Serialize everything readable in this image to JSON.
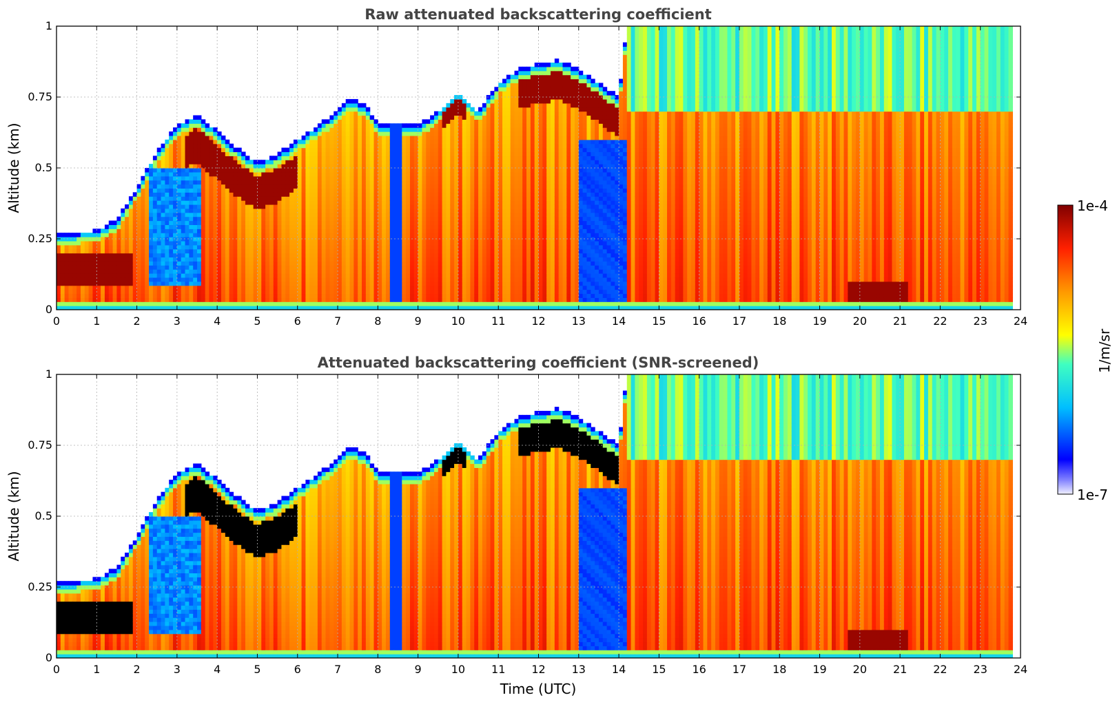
{
  "chart_data": [
    {
      "type": "heatmap",
      "title": "Raw attenuated backscattering coefficient",
      "xlabel": "",
      "ylabel": "Altitude (km)",
      "xlim": [
        0,
        24
      ],
      "ylim": [
        0,
        1
      ],
      "xticks": [
        "0",
        "1",
        "2",
        "3",
        "4",
        "5",
        "6",
        "7",
        "8",
        "9",
        "10",
        "11",
        "12",
        "13",
        "14",
        "15",
        "16",
        "17",
        "18",
        "19",
        "20",
        "21",
        "22",
        "23",
        "24"
      ],
      "yticks": [
        "0",
        "0.25",
        "0.5",
        "0.75",
        "1"
      ],
      "grid": true,
      "screened": false,
      "layer_top_km": [
        [
          0,
          0.27
        ],
        [
          1,
          0.28
        ],
        [
          1.5,
          0.32
        ],
        [
          2,
          0.43
        ],
        [
          2.5,
          0.56
        ],
        [
          3,
          0.65
        ],
        [
          3.5,
          0.69
        ],
        [
          4,
          0.63
        ],
        [
          4.5,
          0.57
        ],
        [
          5,
          0.52
        ],
        [
          5.5,
          0.55
        ],
        [
          6,
          0.6
        ],
        [
          6.5,
          0.65
        ],
        [
          7,
          0.7
        ],
        [
          7.3,
          0.75
        ],
        [
          7.7,
          0.72
        ],
        [
          8,
          0.66
        ],
        [
          8.4,
          0.65
        ],
        [
          9,
          0.65
        ],
        [
          9.5,
          0.7
        ],
        [
          10,
          0.77
        ],
        [
          10.5,
          0.7
        ],
        [
          11,
          0.8
        ],
        [
          11.5,
          0.85
        ],
        [
          12,
          0.87
        ],
        [
          12.5,
          0.88
        ],
        [
          13,
          0.85
        ],
        [
          13.5,
          0.8
        ],
        [
          14,
          0.75
        ],
        [
          14.2,
          1.0
        ],
        [
          23.8,
          1.0
        ]
      ]
    },
    {
      "type": "heatmap",
      "title": "Attenuated backscattering coefficient (SNR-screened)",
      "xlabel": "Time (UTC)",
      "ylabel": "Altitude (km)",
      "xlim": [
        0,
        24
      ],
      "ylim": [
        0,
        1
      ],
      "xticks": [
        "0",
        "1",
        "2",
        "3",
        "4",
        "5",
        "6",
        "7",
        "8",
        "9",
        "10",
        "11",
        "12",
        "13",
        "14",
        "15",
        "16",
        "17",
        "18",
        "19",
        "20",
        "21",
        "22",
        "23",
        "24"
      ],
      "yticks": [
        "0",
        "0.25",
        "0.5",
        "0.75",
        "1"
      ],
      "grid": true,
      "screened": true,
      "layer_top_km": [
        [
          0,
          0.27
        ],
        [
          1,
          0.28
        ],
        [
          1.5,
          0.32
        ],
        [
          2,
          0.43
        ],
        [
          2.5,
          0.56
        ],
        [
          3,
          0.65
        ],
        [
          3.5,
          0.69
        ],
        [
          4,
          0.63
        ],
        [
          4.5,
          0.57
        ],
        [
          5,
          0.52
        ],
        [
          5.5,
          0.55
        ],
        [
          6,
          0.6
        ],
        [
          6.5,
          0.65
        ],
        [
          7,
          0.7
        ],
        [
          7.3,
          0.75
        ],
        [
          7.7,
          0.72
        ],
        [
          8,
          0.66
        ],
        [
          8.4,
          0.65
        ],
        [
          9,
          0.65
        ],
        [
          9.5,
          0.7
        ],
        [
          10,
          0.77
        ],
        [
          10.5,
          0.7
        ],
        [
          11,
          0.8
        ],
        [
          11.5,
          0.85
        ],
        [
          12,
          0.87
        ],
        [
          12.5,
          0.88
        ],
        [
          13,
          0.85
        ],
        [
          13.5,
          0.8
        ],
        [
          14,
          0.75
        ],
        [
          14.2,
          1.0
        ],
        [
          23.8,
          1.0
        ]
      ]
    }
  ],
  "colorbar": {
    "label": "1/m/sr",
    "max_label": "1e-4",
    "min_label": "1e-7",
    "colormap": [
      "#f0f0ff",
      "#0000ff",
      "#00bfff",
      "#40ffc0",
      "#ffff00",
      "#ff9900",
      "#ff2000",
      "#800000"
    ]
  }
}
